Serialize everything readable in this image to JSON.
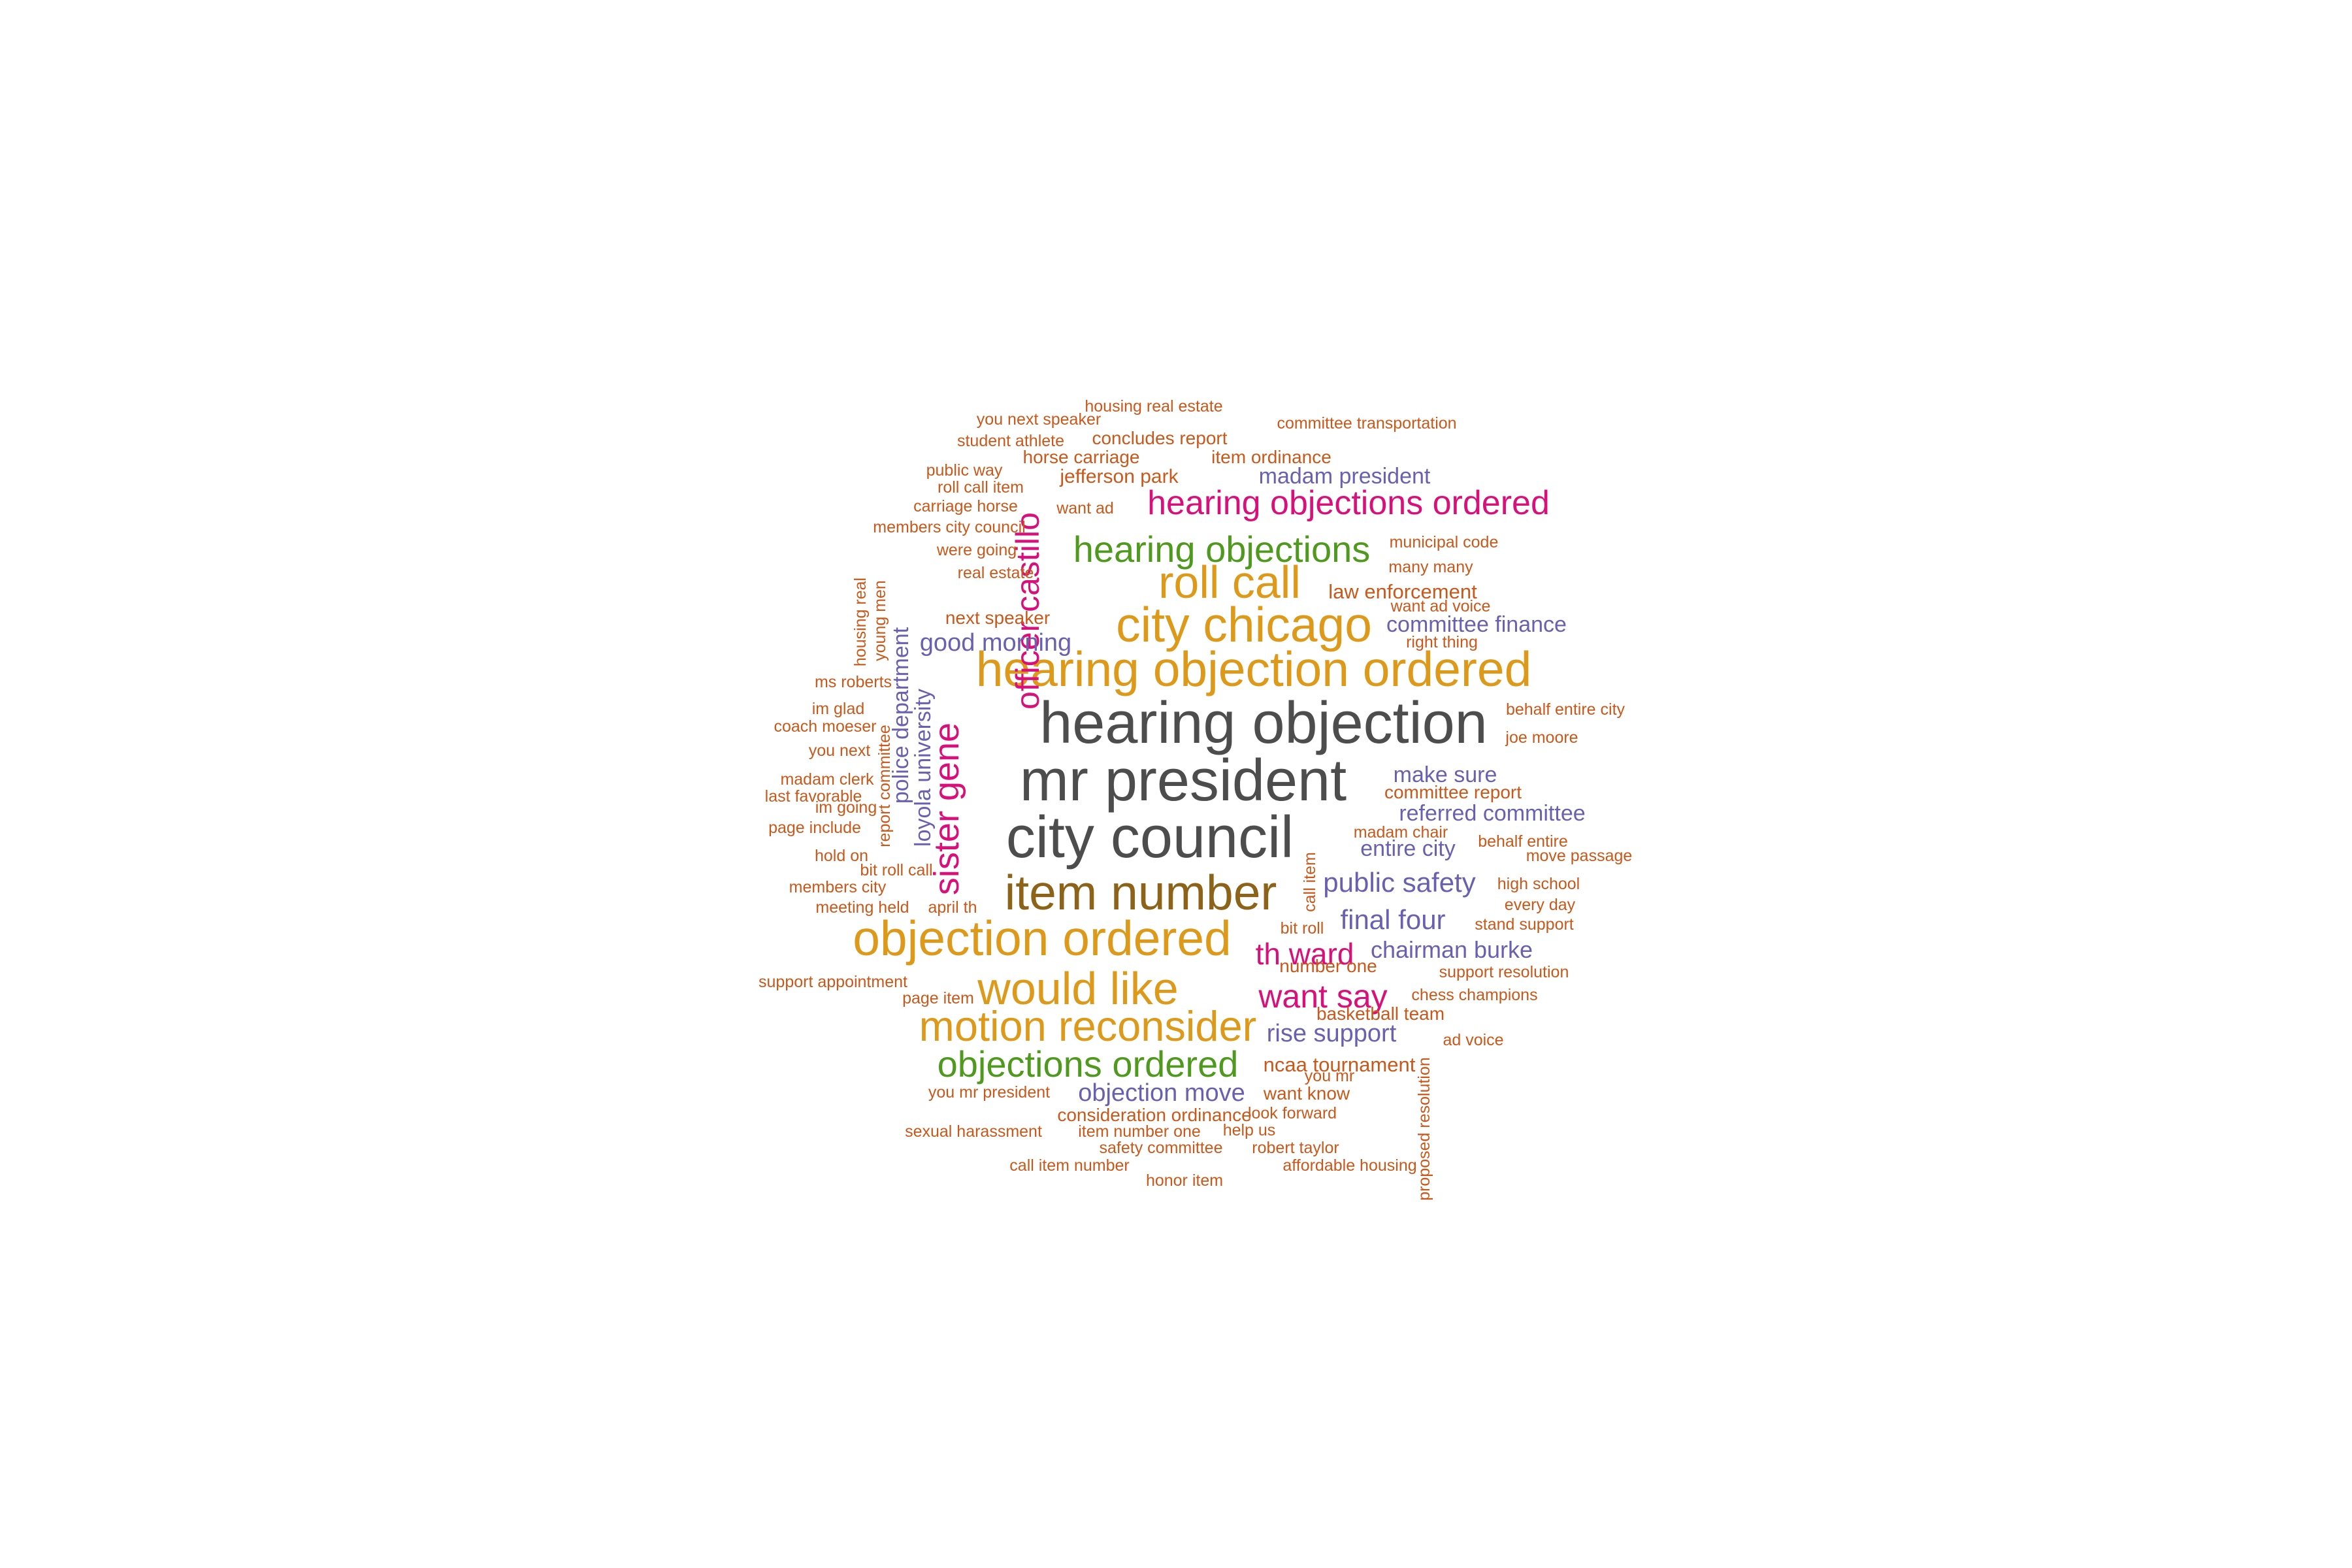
{
  "chart_data": {
    "type": "wordcloud",
    "colors": {
      "gray": "#4d4d4d",
      "gold": "#dd9a1a",
      "brown": "#8c6318",
      "magenta": "#d9107a",
      "green": "#4f9a1e",
      "purple": "#6a60b0",
      "orange": "#c9581a"
    },
    "words": [
      {
        "text": "hearing objection",
        "weight": 10,
        "color": "gray"
      },
      {
        "text": "mr president",
        "weight": 10,
        "color": "gray"
      },
      {
        "text": "city council",
        "weight": 9,
        "color": "gray"
      },
      {
        "text": "item number",
        "weight": 8,
        "color": "brown"
      },
      {
        "text": "hearing objection ordered",
        "weight": 7,
        "color": "gold"
      },
      {
        "text": "objection ordered",
        "weight": 7,
        "color": "gold"
      },
      {
        "text": "city chicago",
        "weight": 7,
        "color": "gold"
      },
      {
        "text": "roll call",
        "weight": 7,
        "color": "gold"
      },
      {
        "text": "would like",
        "weight": 7,
        "color": "gold"
      },
      {
        "text": "motion reconsider",
        "weight": 6,
        "color": "gold"
      },
      {
        "text": "hearing objections ordered",
        "weight": 5,
        "color": "magenta"
      },
      {
        "text": "hearing objections",
        "weight": 5,
        "color": "green"
      },
      {
        "text": "objections ordered",
        "weight": 5,
        "color": "green"
      },
      {
        "text": "officer castillo",
        "weight": 5,
        "color": "magenta"
      },
      {
        "text": "sister gene",
        "weight": 5,
        "color": "magenta"
      },
      {
        "text": "want say",
        "weight": 5,
        "color": "magenta"
      },
      {
        "text": "th ward",
        "weight": 4,
        "color": "magenta"
      },
      {
        "text": "public safety",
        "weight": 4,
        "color": "purple"
      },
      {
        "text": "final four",
        "weight": 4,
        "color": "purple"
      },
      {
        "text": "good morning",
        "weight": 3,
        "color": "purple"
      },
      {
        "text": "committee finance",
        "weight": 3,
        "color": "purple"
      },
      {
        "text": "madam president",
        "weight": 3,
        "color": "purple"
      },
      {
        "text": "make sure",
        "weight": 3,
        "color": "purple"
      },
      {
        "text": "referred committee",
        "weight": 3,
        "color": "purple"
      },
      {
        "text": "entire city",
        "weight": 3,
        "color": "purple"
      },
      {
        "text": "chairman burke",
        "weight": 3,
        "color": "purple"
      },
      {
        "text": "rise support",
        "weight": 3,
        "color": "purple"
      },
      {
        "text": "objection move",
        "weight": 3,
        "color": "purple"
      },
      {
        "text": "police department",
        "weight": 3,
        "color": "purple"
      },
      {
        "text": "loyola university",
        "weight": 3,
        "color": "purple"
      },
      {
        "text": "law enforcement",
        "weight": 2,
        "color": "orange"
      },
      {
        "text": "ncaa tournament",
        "weight": 2,
        "color": "orange"
      },
      {
        "text": "next speaker",
        "weight": 2,
        "color": "orange"
      },
      {
        "text": "jefferson park",
        "weight": 2,
        "color": "orange"
      },
      {
        "text": "item ordinance",
        "weight": 2,
        "color": "orange"
      },
      {
        "text": "horse carriage",
        "weight": 2,
        "color": "orange"
      },
      {
        "text": "concludes report",
        "weight": 2,
        "color": "orange"
      },
      {
        "text": "committee report",
        "weight": 2,
        "color": "orange"
      },
      {
        "text": "basketball team",
        "weight": 2,
        "color": "orange"
      },
      {
        "text": "want know",
        "weight": 2,
        "color": "orange"
      },
      {
        "text": "number one",
        "weight": 2,
        "color": "orange"
      },
      {
        "text": "consideration ordinance",
        "weight": 2,
        "color": "orange"
      },
      {
        "text": "housing real estate",
        "weight": 1,
        "color": "orange"
      },
      {
        "text": "you next speaker",
        "weight": 1,
        "color": "orange"
      },
      {
        "text": "committee transportation",
        "weight": 1,
        "color": "orange"
      },
      {
        "text": "student athlete",
        "weight": 1,
        "color": "orange"
      },
      {
        "text": "public way",
        "weight": 1,
        "color": "orange"
      },
      {
        "text": "roll call item",
        "weight": 1,
        "color": "orange"
      },
      {
        "text": "carriage horse",
        "weight": 1,
        "color": "orange"
      },
      {
        "text": "want ad",
        "weight": 1,
        "color": "orange"
      },
      {
        "text": "members city council",
        "weight": 1,
        "color": "orange"
      },
      {
        "text": "were going",
        "weight": 1,
        "color": "orange"
      },
      {
        "text": "real estate",
        "weight": 1,
        "color": "orange"
      },
      {
        "text": "municipal code",
        "weight": 1,
        "color": "orange"
      },
      {
        "text": "many many",
        "weight": 1,
        "color": "orange"
      },
      {
        "text": "want ad voice",
        "weight": 1,
        "color": "orange"
      },
      {
        "text": "right thing",
        "weight": 1,
        "color": "orange"
      },
      {
        "text": "housing real",
        "weight": 1,
        "color": "orange"
      },
      {
        "text": "young men",
        "weight": 1,
        "color": "orange"
      },
      {
        "text": "ms roberts",
        "weight": 1,
        "color": "orange"
      },
      {
        "text": "im glad",
        "weight": 1,
        "color": "orange"
      },
      {
        "text": "coach moeser",
        "weight": 1,
        "color": "orange"
      },
      {
        "text": "you next",
        "weight": 1,
        "color": "orange"
      },
      {
        "text": "madam clerk",
        "weight": 1,
        "color": "orange"
      },
      {
        "text": "last favorable",
        "weight": 1,
        "color": "orange"
      },
      {
        "text": "im going",
        "weight": 1,
        "color": "orange"
      },
      {
        "text": "page include",
        "weight": 1,
        "color": "orange"
      },
      {
        "text": "hold on",
        "weight": 1,
        "color": "orange"
      },
      {
        "text": "bit roll call",
        "weight": 1,
        "color": "orange"
      },
      {
        "text": "members city",
        "weight": 1,
        "color": "orange"
      },
      {
        "text": "meeting held",
        "weight": 1,
        "color": "orange"
      },
      {
        "text": "april th",
        "weight": 1,
        "color": "orange"
      },
      {
        "text": "report committee",
        "weight": 1,
        "color": "orange"
      },
      {
        "text": "behalf entire city",
        "weight": 1,
        "color": "orange"
      },
      {
        "text": "joe moore",
        "weight": 1,
        "color": "orange"
      },
      {
        "text": "madam chair",
        "weight": 1,
        "color": "orange"
      },
      {
        "text": "behalf entire",
        "weight": 1,
        "color": "orange"
      },
      {
        "text": "move passage",
        "weight": 1,
        "color": "orange"
      },
      {
        "text": "high school",
        "weight": 1,
        "color": "orange"
      },
      {
        "text": "every day",
        "weight": 1,
        "color": "orange"
      },
      {
        "text": "stand support",
        "weight": 1,
        "color": "orange"
      },
      {
        "text": "call item",
        "weight": 1,
        "color": "orange"
      },
      {
        "text": "bit roll",
        "weight": 1,
        "color": "orange"
      },
      {
        "text": "support resolution",
        "weight": 1,
        "color": "orange"
      },
      {
        "text": "chess champions",
        "weight": 1,
        "color": "orange"
      },
      {
        "text": "ad voice",
        "weight": 1,
        "color": "orange"
      },
      {
        "text": "support appointment",
        "weight": 1,
        "color": "orange"
      },
      {
        "text": "page item",
        "weight": 1,
        "color": "orange"
      },
      {
        "text": "you mr",
        "weight": 1,
        "color": "orange"
      },
      {
        "text": "you mr president",
        "weight": 1,
        "color": "orange"
      },
      {
        "text": "look forward",
        "weight": 1,
        "color": "orange"
      },
      {
        "text": "sexual harassment",
        "weight": 1,
        "color": "orange"
      },
      {
        "text": "item number one",
        "weight": 1,
        "color": "orange"
      },
      {
        "text": "help us",
        "weight": 1,
        "color": "orange"
      },
      {
        "text": "safety committee",
        "weight": 1,
        "color": "orange"
      },
      {
        "text": "robert taylor",
        "weight": 1,
        "color": "orange"
      },
      {
        "text": "call item number",
        "weight": 1,
        "color": "orange"
      },
      {
        "text": "affordable housing",
        "weight": 1,
        "color": "orange"
      },
      {
        "text": "honor item",
        "weight": 1,
        "color": "orange"
      },
      {
        "text": "proposed resolution",
        "weight": 1,
        "color": "orange"
      }
    ]
  }
}
